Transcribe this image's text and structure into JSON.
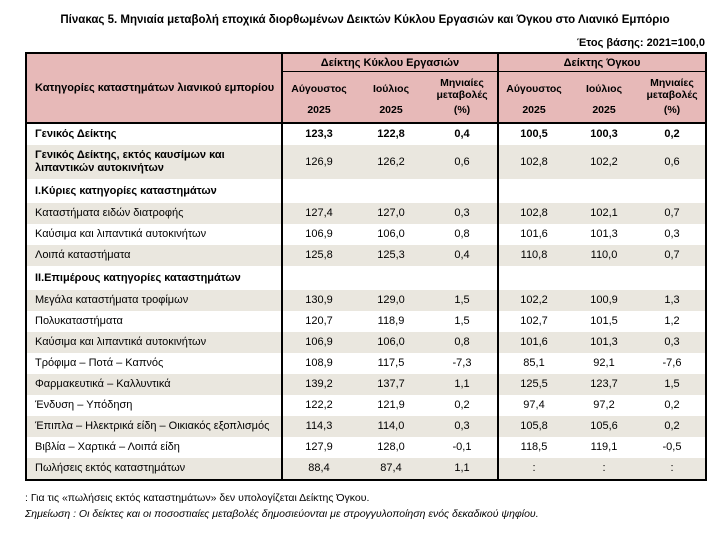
{
  "page": {
    "title": "Πίνακας 5. Μηνιαία μεταβολή εποχικά διορθωμένων Δεικτών Κύκλου Εργασιών και Όγκου στο Λιανικό Εμπόριο",
    "base_year_note": "Έτος βάσης: 2021=100,0"
  },
  "colors": {
    "header_pink": "#e7b9b8",
    "row_shade": "#eae7df",
    "border": "#000000"
  },
  "table": {
    "category_header": "Κατηγορίες καταστημάτων λιανικού εμπορίου",
    "groups": [
      {
        "label": "Δείκτης Κύκλου Εργασιών",
        "columns": [
          {
            "line1": "Αύγουστος",
            "line2": "2025"
          },
          {
            "line1": "Ιούλιος",
            "line2": "2025"
          },
          {
            "line1": "Μηνιαίες μεταβολές",
            "line2": "(%)"
          }
        ]
      },
      {
        "label": "Δείκτης Όγκου",
        "columns": [
          {
            "line1": "Αύγουστος",
            "line2": "2025"
          },
          {
            "line1": "Ιούλιος",
            "line2": "2025"
          },
          {
            "line1": "Μηνιαίες μεταβολές",
            "line2": "(%)"
          }
        ]
      }
    ],
    "rows": [
      {
        "label": "Γενικός Δείκτης",
        "style": "index-main",
        "shaded": false,
        "values": [
          "123,3",
          "122,8",
          "0,4",
          "100,5",
          "100,3",
          "0,2"
        ]
      },
      {
        "label": "Γενικός Δείκτης, εκτός καυσίμων και λιπαντικών αυτοκινήτων",
        "style": "index-sub",
        "shaded": true,
        "values": [
          "126,9",
          "126,2",
          "0,6",
          "102,8",
          "102,2",
          "0,6"
        ]
      },
      {
        "label": "Ι.Κύριες κατηγορίες καταστημάτων",
        "style": "section",
        "shaded": false,
        "values": [
          "",
          "",
          "",
          "",
          "",
          ""
        ]
      },
      {
        "label": "Καταστήματα ειδών διατροφής",
        "style": "normal",
        "shaded": true,
        "values": [
          "127,4",
          "127,0",
          "0,3",
          "102,8",
          "102,1",
          "0,7"
        ]
      },
      {
        "label": "Καύσιμα και λιπαντικά αυτοκινήτων",
        "style": "normal",
        "shaded": false,
        "values": [
          "106,9",
          "106,0",
          "0,8",
          "101,6",
          "101,3",
          "0,3"
        ]
      },
      {
        "label": "Λοιπά καταστήματα",
        "style": "normal",
        "shaded": true,
        "values": [
          "125,8",
          "125,3",
          "0,4",
          "110,8",
          "110,0",
          "0,7"
        ]
      },
      {
        "label": "ΙΙ.Επιμέρους κατηγορίες καταστημάτων",
        "style": "section",
        "shaded": false,
        "values": [
          "",
          "",
          "",
          "",
          "",
          ""
        ]
      },
      {
        "label": "Μεγάλα καταστήματα τροφίμων",
        "style": "normal",
        "shaded": true,
        "values": [
          "130,9",
          "129,0",
          "1,5",
          "102,2",
          "100,9",
          "1,3"
        ]
      },
      {
        "label": "Πολυκαταστήματα",
        "style": "normal",
        "shaded": false,
        "values": [
          "120,7",
          "118,9",
          "1,5",
          "102,7",
          "101,5",
          "1,2"
        ]
      },
      {
        "label": "Καύσιμα και λιπαντικά αυτοκινήτων",
        "style": "normal",
        "shaded": true,
        "values": [
          "106,9",
          "106,0",
          "0,8",
          "101,6",
          "101,3",
          "0,3"
        ]
      },
      {
        "label": "Τρόφιμα – Ποτά – Καπνός",
        "style": "normal",
        "shaded": false,
        "values": [
          "108,9",
          "117,5",
          "-7,3",
          "85,1",
          "92,1",
          "-7,6"
        ]
      },
      {
        "label": "Φαρμακευτικά – Καλλυντικά",
        "style": "normal",
        "shaded": true,
        "values": [
          "139,2",
          "137,7",
          "1,1",
          "125,5",
          "123,7",
          "1,5"
        ]
      },
      {
        "label": "Ένδυση – Υπόδηση",
        "style": "normal",
        "shaded": false,
        "values": [
          "122,2",
          "121,9",
          "0,2",
          "97,4",
          "97,2",
          "0,2"
        ]
      },
      {
        "label": "Έπιπλα – Ηλεκτρικά είδη – Οικιακός εξοπλισμός",
        "style": "normal",
        "shaded": true,
        "values": [
          "114,3",
          "114,0",
          "0,3",
          "105,8",
          "105,6",
          "0,2"
        ]
      },
      {
        "label": "Βιβλία – Χαρτικά – Λοιπά είδη",
        "style": "normal",
        "shaded": false,
        "values": [
          "127,9",
          "128,0",
          "-0,1",
          "118,5",
          "119,1",
          "-0,5"
        ]
      },
      {
        "label": "Πωλήσεις εκτός καταστημάτων",
        "style": "normal",
        "shaded": true,
        "values": [
          "88,4",
          "87,4",
          "1,1",
          ":",
          ":",
          ":"
        ]
      }
    ]
  },
  "footnotes": [
    ": Για τις «πωλήσεις εκτός καταστημάτων» δεν υπολογίζεται Δείκτης Όγκου.",
    "Σημείωση : Οι δείκτες και οι ποσοστιαίες μεταβολές δημοσιεύονται με στρογγυλοποίηση ενός δεκαδικού ψηφίου."
  ]
}
